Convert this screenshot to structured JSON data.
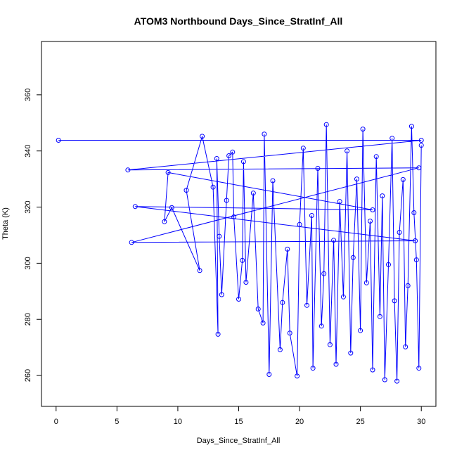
{
  "chart_data": {
    "type": "scatter",
    "title": "ATOM3 Northbound Days_Since_StratInf_All",
    "xlabel": "Days_Since_StratInf_All",
    "ylabel": "Theta (K)",
    "xlim": [
      -1.2,
      31.2
    ],
    "ylim": [
      249,
      379
    ],
    "xticks": [
      0,
      5,
      10,
      15,
      20,
      25,
      30
    ],
    "yticks": [
      260,
      280,
      300,
      320,
      340,
      360
    ],
    "series_color": "#0000ff",
    "style": "points connected by lines, open circle markers",
    "points": [
      [
        0.2,
        343.8
      ],
      [
        30.0,
        343.8
      ],
      [
        5.9,
        333.2
      ],
      [
        29.8,
        334.0
      ],
      [
        6.2,
        307.4
      ],
      [
        29.5,
        308.0
      ],
      [
        6.5,
        320.2
      ],
      [
        26.0,
        319.0
      ],
      [
        9.2,
        332.3
      ],
      [
        8.9,
        314.8
      ],
      [
        9.5,
        319.8
      ],
      [
        11.8,
        297.4
      ],
      [
        10.7,
        326.0
      ],
      [
        12.0,
        345.2
      ],
      [
        12.9,
        327.1
      ],
      [
        13.3,
        274.7
      ],
      [
        13.2,
        337.3
      ],
      [
        13.4,
        309.6
      ],
      [
        13.6,
        288.8
      ],
      [
        14.0,
        322.4
      ],
      [
        14.2,
        338.3
      ],
      [
        14.5,
        339.6
      ],
      [
        14.6,
        316.5
      ],
      [
        15.0,
        287.2
      ],
      [
        15.3,
        301.0
      ],
      [
        15.4,
        336.2
      ],
      [
        15.6,
        293.2
      ],
      [
        16.2,
        325.0
      ],
      [
        16.6,
        283.7
      ],
      [
        17.0,
        278.7
      ],
      [
        17.1,
        346.0
      ],
      [
        17.5,
        260.4
      ],
      [
        17.8,
        329.4
      ],
      [
        18.4,
        269.2
      ],
      [
        18.6,
        286.0
      ],
      [
        19.0,
        305.0
      ],
      [
        19.2,
        275.1
      ],
      [
        19.8,
        259.8
      ],
      [
        20.0,
        313.8
      ],
      [
        20.3,
        341.0
      ],
      [
        20.6,
        285.0
      ],
      [
        21.0,
        317.0
      ],
      [
        21.1,
        262.6
      ],
      [
        21.5,
        333.8
      ],
      [
        21.8,
        277.6
      ],
      [
        22.0,
        296.3
      ],
      [
        22.2,
        349.4
      ],
      [
        22.5,
        271.0
      ],
      [
        22.8,
        308.2
      ],
      [
        23.0,
        264.0
      ],
      [
        23.3,
        322.0
      ],
      [
        23.6,
        288.0
      ],
      [
        23.9,
        340.0
      ],
      [
        24.2,
        268.0
      ],
      [
        24.4,
        302.0
      ],
      [
        24.7,
        330.0
      ],
      [
        25.0,
        276.0
      ],
      [
        25.2,
        347.8
      ],
      [
        25.5,
        293.0
      ],
      [
        25.8,
        315.0
      ],
      [
        26.0,
        262.0
      ],
      [
        26.3,
        338.0
      ],
      [
        26.6,
        281.0
      ],
      [
        26.8,
        324.0
      ],
      [
        27.0,
        258.5
      ],
      [
        27.3,
        299.5
      ],
      [
        27.6,
        344.5
      ],
      [
        27.8,
        286.6
      ],
      [
        28.0,
        258.0
      ],
      [
        28.2,
        311.0
      ],
      [
        28.5,
        329.8
      ],
      [
        28.7,
        270.2
      ],
      [
        28.9,
        292.0
      ],
      [
        29.2,
        348.8
      ],
      [
        29.4,
        318.0
      ],
      [
        29.6,
        301.2
      ],
      [
        29.8,
        262.6
      ],
      [
        30.0,
        342.0
      ]
    ],
    "grid": false,
    "legend": "none"
  }
}
